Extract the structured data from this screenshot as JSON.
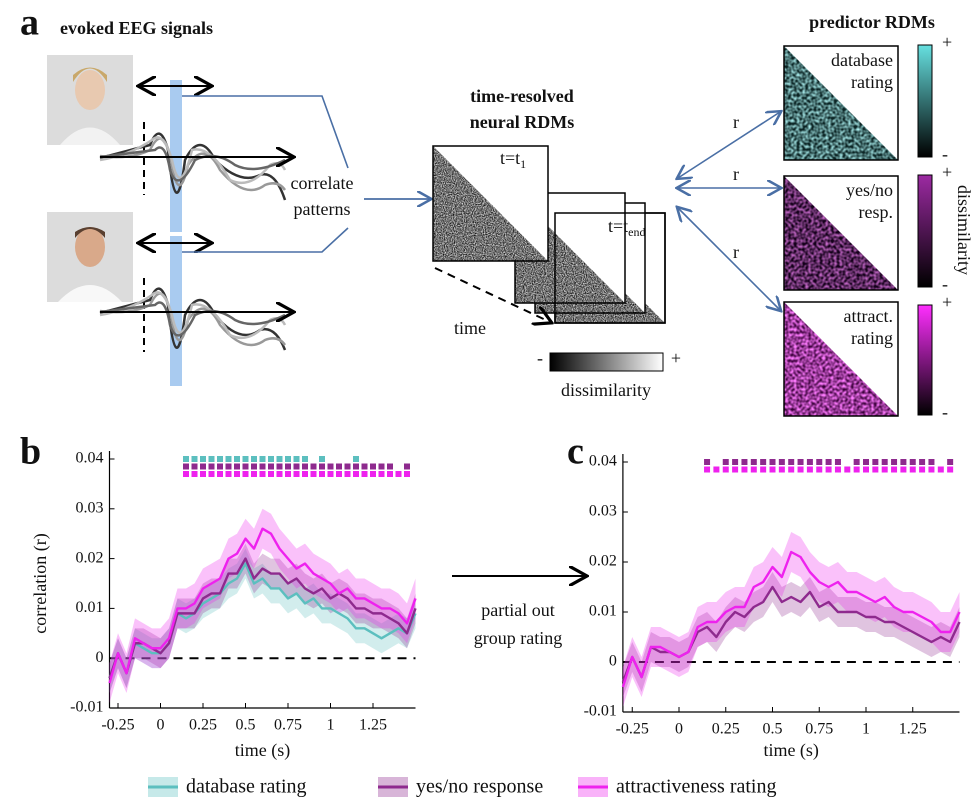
{
  "panel_a": {
    "panel_label": "a",
    "eeg_title": "evoked EEG signals",
    "correlate_label": [
      "correlate",
      "patterns"
    ],
    "rdm_title": [
      "time-resolved",
      "neural RDMs"
    ],
    "first_time": {
      "text": "t=t",
      "sub": "1"
    },
    "last_time": {
      "text": "t=t",
      "sub": "end"
    },
    "time_label": "time",
    "colorbar": {
      "min": "-",
      "max": "+",
      "label": "dissimilarity"
    },
    "predictor_title": "predictor RDMs",
    "predictors": [
      {
        "label": [
          "database",
          "rating"
        ]
      },
      {
        "label": [
          "yes/no",
          "resp."
        ]
      },
      {
        "label": [
          "attract.",
          "rating"
        ]
      }
    ],
    "predictor_colorbar": {
      "min": "-",
      "max": "+",
      "label": "dissimilarity"
    },
    "r_labels": [
      "r",
      "r",
      "r"
    ]
  },
  "arrow_label": [
    "partial out",
    "group rating"
  ],
  "chart_data": [
    {
      "type": "line",
      "panel_label": "b",
      "ylabel": "correlation (r)",
      "xlabel": "time (s)",
      "legend": true,
      "x": [
        -0.3,
        -0.25,
        -0.2,
        -0.15,
        -0.1,
        -0.05,
        0,
        0.05,
        0.1,
        0.15,
        0.2,
        0.25,
        0.3,
        0.35,
        0.4,
        0.45,
        0.5,
        0.55,
        0.6,
        0.65,
        0.7,
        0.75,
        0.8,
        0.85,
        0.9,
        0.95,
        1,
        1.05,
        1.1,
        1.15,
        1.2,
        1.25,
        1.3,
        1.35,
        1.4,
        1.45,
        1.5
      ],
      "xlim": [
        -0.3,
        1.5
      ],
      "xticks": [
        -0.25,
        0,
        0.25,
        0.5,
        0.75,
        1,
        1.25
      ],
      "ylim": [
        -0.01,
        0.04
      ],
      "yticks": [
        -0.01,
        0,
        0.01,
        0.02,
        0.03,
        0.04
      ],
      "series": [
        {
          "name": "database rating",
          "color": "#5cbfbf",
          "error": 0.003,
          "values": [
            -0.004,
            0.001,
            -0.003,
            0.003,
            0.002,
            0.001,
            0.001,
            0.003,
            0.009,
            0.008,
            0.009,
            0.011,
            0.012,
            0.013,
            0.015,
            0.016,
            0.019,
            0.015,
            0.016,
            0.014,
            0.014,
            0.012,
            0.013,
            0.011,
            0.012,
            0.01,
            0.01,
            0.009,
            0.008,
            0.006,
            0.006,
            0.005,
            0.004,
            0.005,
            0.006,
            0.005,
            0.009
          ],
          "significant": [
            0.15,
            0.2,
            0.25,
            0.3,
            0.35,
            0.4,
            0.45,
            0.5,
            0.55,
            0.6,
            0.65,
            0.7,
            0.75,
            0.8,
            0.85,
            0.95,
            1.15
          ]
        },
        {
          "name": "yes/no response",
          "color": "#8e2a8e",
          "error": 0.003,
          "values": [
            -0.004,
            0.001,
            -0.003,
            0.003,
            0.003,
            0.002,
            0.001,
            0.003,
            0.009,
            0.009,
            0.009,
            0.012,
            0.013,
            0.013,
            0.017,
            0.017,
            0.02,
            0.016,
            0.018,
            0.017,
            0.017,
            0.015,
            0.016,
            0.014,
            0.013,
            0.014,
            0.012,
            0.013,
            0.012,
            0.01,
            0.01,
            0.009,
            0.009,
            0.008,
            0.007,
            0.005,
            0.01
          ],
          "significant": [
            0.15,
            0.2,
            0.25,
            0.3,
            0.35,
            0.4,
            0.45,
            0.5,
            0.55,
            0.6,
            0.65,
            0.7,
            0.75,
            0.8,
            0.85,
            0.9,
            0.95,
            1,
            1.05,
            1.1,
            1.15,
            1.2,
            1.25,
            1.3,
            1.35,
            1.45
          ]
        },
        {
          "name": "attractiveness rating",
          "color": "#ee22ee",
          "error": 0.004,
          "values": [
            -0.005,
            0.001,
            -0.003,
            0.004,
            0.003,
            0.002,
            0.002,
            0.004,
            0.01,
            0.01,
            0.011,
            0.014,
            0.015,
            0.016,
            0.02,
            0.021,
            0.024,
            0.022,
            0.026,
            0.025,
            0.022,
            0.02,
            0.018,
            0.019,
            0.017,
            0.016,
            0.015,
            0.013,
            0.014,
            0.012,
            0.012,
            0.011,
            0.01,
            0.01,
            0.009,
            0.007,
            0.012
          ],
          "significant": [
            0.15,
            0.2,
            0.25,
            0.3,
            0.35,
            0.4,
            0.45,
            0.5,
            0.55,
            0.6,
            0.65,
            0.7,
            0.75,
            0.8,
            0.85,
            0.9,
            0.95,
            1,
            1.05,
            1.1,
            1.15,
            1.2,
            1.25,
            1.3,
            1.35,
            1.4,
            1.45
          ]
        }
      ]
    },
    {
      "type": "line",
      "panel_label": "c",
      "xlabel": "time (s)",
      "x": [
        -0.3,
        -0.25,
        -0.2,
        -0.15,
        -0.1,
        -0.05,
        0,
        0.05,
        0.1,
        0.15,
        0.2,
        0.25,
        0.3,
        0.35,
        0.4,
        0.45,
        0.5,
        0.55,
        0.6,
        0.65,
        0.7,
        0.75,
        0.8,
        0.85,
        0.9,
        0.95,
        1,
        1.05,
        1.1,
        1.15,
        1.2,
        1.25,
        1.3,
        1.35,
        1.4,
        1.45,
        1.5
      ],
      "xlim": [
        -0.3,
        1.5
      ],
      "xticks": [
        -0.25,
        0,
        0.25,
        0.5,
        0.75,
        1,
        1.25
      ],
      "ylim": [
        -0.01,
        0.04
      ],
      "yticks": [
        -0.01,
        0,
        0.01,
        0.02,
        0.03,
        0.04
      ],
      "series": [
        {
          "color": "#8e2a8e",
          "error": 0.003,
          "values": [
            -0.004,
            0.001,
            -0.003,
            0.003,
            0.002,
            0.002,
            0.001,
            0.002,
            0.006,
            0.007,
            0.005,
            0.008,
            0.01,
            0.009,
            0.011,
            0.012,
            0.015,
            0.012,
            0.013,
            0.012,
            0.014,
            0.011,
            0.012,
            0.01,
            0.01,
            0.01,
            0.009,
            0.009,
            0.008,
            0.008,
            0.007,
            0.006,
            0.005,
            0.004,
            0.005,
            0.004,
            0.008
          ],
          "significant": [
            0.15,
            0.25,
            0.3,
            0.35,
            0.4,
            0.45,
            0.5,
            0.55,
            0.6,
            0.65,
            0.7,
            0.75,
            0.8,
            0.85,
            0.95,
            1,
            1.05,
            1.1,
            1.15,
            1.2,
            1.25,
            1.3,
            1.35,
            1.45
          ]
        },
        {
          "color": "#ee22ee",
          "error": 0.004,
          "values": [
            -0.005,
            0.001,
            -0.003,
            0.003,
            0.003,
            0.002,
            0.001,
            0.002,
            0.007,
            0.008,
            0.008,
            0.01,
            0.011,
            0.011,
            0.015,
            0.016,
            0.019,
            0.017,
            0.022,
            0.021,
            0.018,
            0.016,
            0.015,
            0.016,
            0.014,
            0.014,
            0.013,
            0.012,
            0.013,
            0.011,
            0.01,
            0.01,
            0.009,
            0.008,
            0.006,
            0.006,
            0.01
          ],
          "significant": [
            0.15,
            0.2,
            0.25,
            0.3,
            0.35,
            0.4,
            0.45,
            0.5,
            0.55,
            0.6,
            0.65,
            0.7,
            0.75,
            0.8,
            0.85,
            0.9,
            0.95,
            1,
            1.05,
            1.1,
            1.15,
            1.2,
            1.25,
            1.3,
            1.35,
            1.4,
            1.45
          ]
        }
      ]
    }
  ]
}
